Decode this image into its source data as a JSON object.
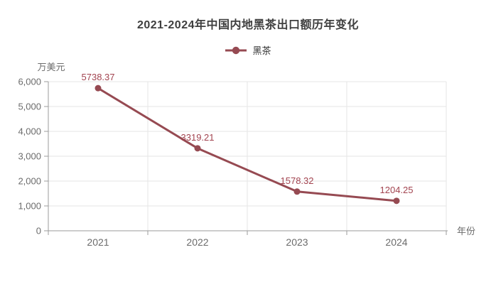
{
  "header": {
    "title": "2021-2024年中国内地黑茶出口额历年变化"
  },
  "legend": {
    "items": [
      {
        "label": "黑茶",
        "color": "#964a52"
      }
    ]
  },
  "chart_data": {
    "type": "line",
    "title": "2021-2024年中国内地黑茶出口额历年变化",
    "categories": [
      "2021",
      "2022",
      "2023",
      "2024"
    ],
    "series": [
      {
        "name": "黑茶",
        "values": [
          5738.37,
          3319.21,
          1578.32,
          1204.25
        ],
        "color": "#964a52"
      }
    ],
    "data_labels": [
      "5738.37",
      "3319.21",
      "1578.32",
      "1204.25"
    ],
    "xlabel": "年份",
    "ylabel": "万美元",
    "ylim": [
      0,
      6000
    ],
    "y_ticks": [
      {
        "value": 0,
        "label": "0"
      },
      {
        "value": 1000,
        "label": "1,000"
      },
      {
        "value": 2000,
        "label": "2,000"
      },
      {
        "value": 3000,
        "label": "3,000"
      },
      {
        "value": 4000,
        "label": "4,000"
      },
      {
        "value": 5000,
        "label": "5,000"
      },
      {
        "value": 6000,
        "label": "6,000"
      }
    ],
    "grid": true,
    "legend_position": "top"
  },
  "colors": {
    "series": "#964a52",
    "data_label": "#a2434f",
    "grid_line": "#e6e6e6",
    "axis_line": "#9b9b9b",
    "tick_text": "#6b6b6b",
    "title_text": "#3f3f3f",
    "background": "#ffffff"
  }
}
